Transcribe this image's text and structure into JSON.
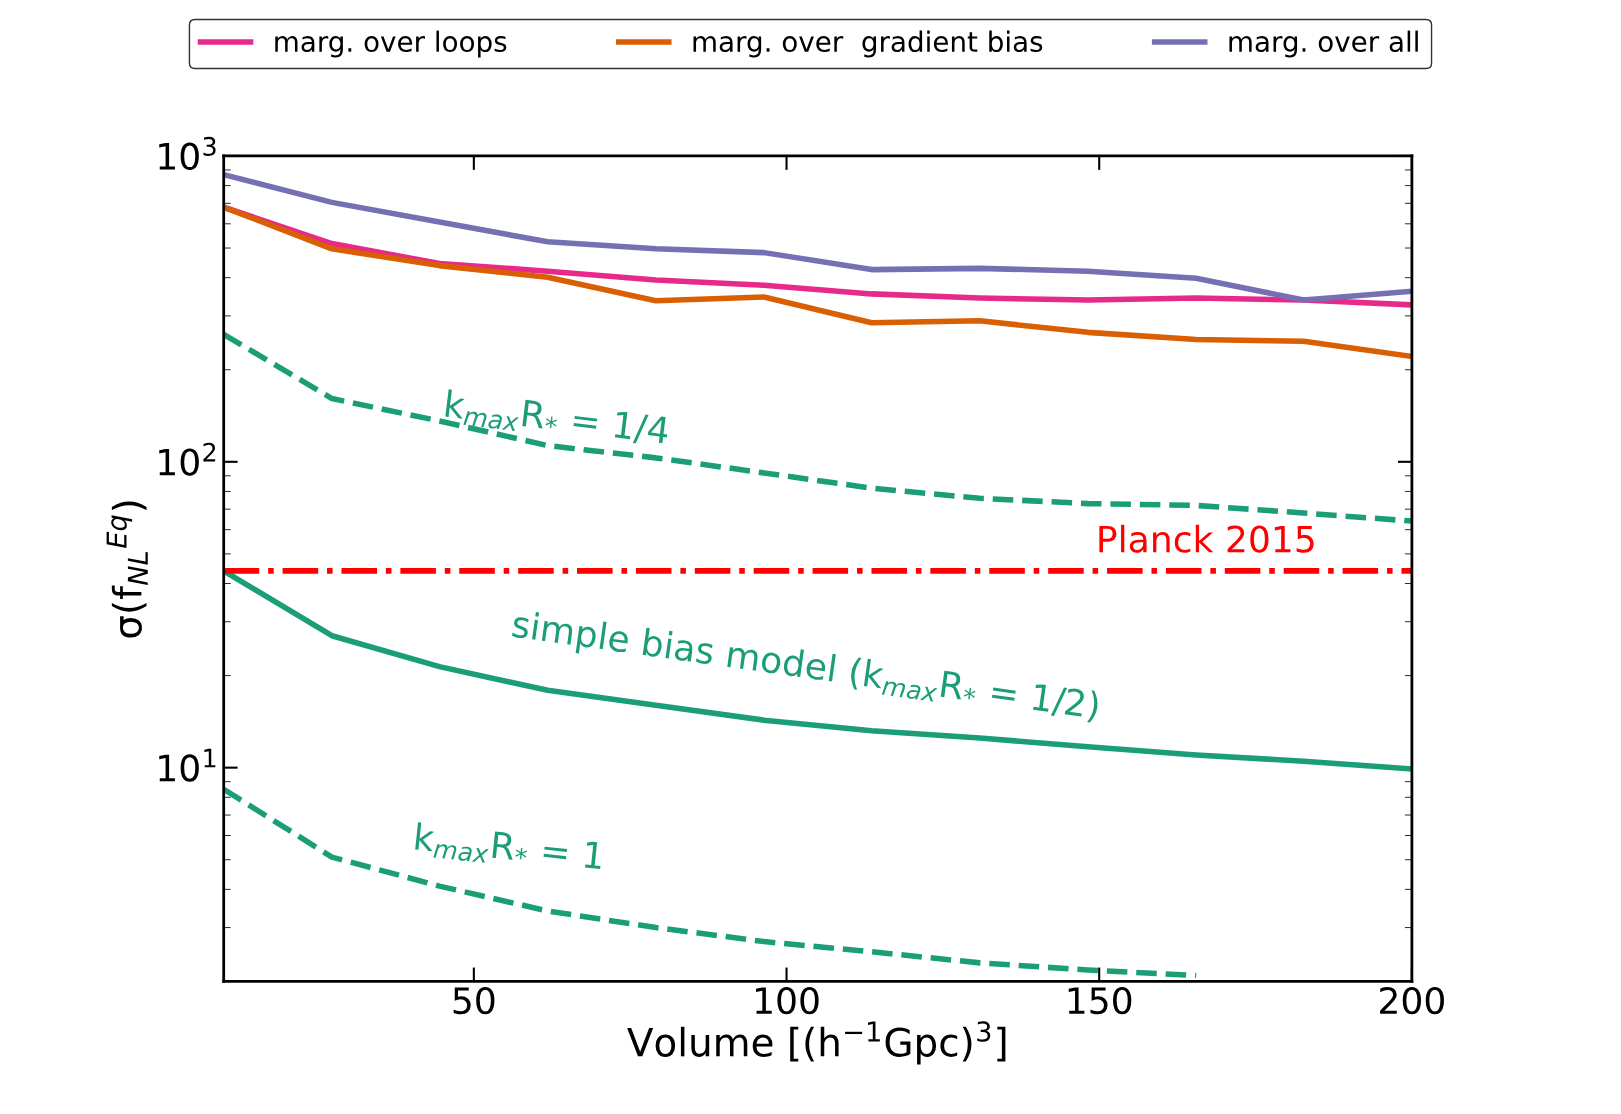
{
  "chart_data": {
    "type": "line",
    "x": [
      10,
      27.3,
      44.5,
      61.8,
      79.1,
      96.4,
      113.6,
      130.9,
      148.2,
      165.5,
      182.7,
      200
    ],
    "series": [
      {
        "name": "marg. over loops",
        "color": "#e7298a",
        "values": [
          680,
          517,
          445,
          420,
          393,
          378,
          354,
          343,
          338,
          343,
          338,
          326
        ]
      },
      {
        "name": "marg. over  gradient bias",
        "color": "#d95f02",
        "values": [
          680,
          497,
          438,
          401,
          336,
          346,
          285,
          289,
          265,
          251,
          248,
          221
        ]
      },
      {
        "name": "marg. over all",
        "color": "#7570b3",
        "values": [
          869,
          705,
          608,
          524,
          497,
          483,
          425,
          429,
          420,
          398,
          338,
          361
        ]
      },
      {
        "color": "#1b9e77",
        "line_style": "dashed",
        "values": [
          261,
          161,
          136,
          113,
          103,
          92,
          82,
          76,
          73,
          72,
          68,
          64
        ]
      },
      {
        "color": "#1b9e77",
        "line_style": "solid",
        "values": [
          44,
          27,
          21.4,
          17.9,
          16,
          14.3,
          13.2,
          12.5,
          11.7,
          11,
          10.5,
          9.9
        ]
      },
      {
        "color": "#1b9e77",
        "line_style": "dashed",
        "values": [
          8.5,
          5.1,
          4.1,
          3.4,
          3.0,
          2.7,
          2.5,
          2.3,
          2.18,
          2.09,
          null,
          null
        ]
      }
    ],
    "xlabel": "Volume [(h$^{−1}$Gpc)$^{3}$]",
    "ylabel": "σ(f$_{NL}$$^{Eq}$)",
    "xlim": [
      10,
      200
    ],
    "xticks": [
      50,
      100,
      150,
      200
    ],
    "log": "y",
    "ylim": [
      2,
      1000
    ],
    "yticks": [
      {
        "value": 10,
        "label": "10$^{1}$"
      },
      {
        "value": 100,
        "label": "10$^{2}$"
      },
      {
        "value": 1000,
        "label": "10$^{3}$"
      }
    ],
    "ref_lines": [
      {
        "axis": "y",
        "value": 44,
        "label": "Planck 2015",
        "color": "#ff0000",
        "line_style": "dashdot"
      }
    ],
    "annotations": [
      "k$_{max}$R$_{*}$ = 1/4",
      "simple bias model (k$_{max}$R$_{*}$ = 1/2)",
      "k$_{max}$R$_{*}$ = 1"
    ],
    "legend": "top",
    "grid": false
  }
}
